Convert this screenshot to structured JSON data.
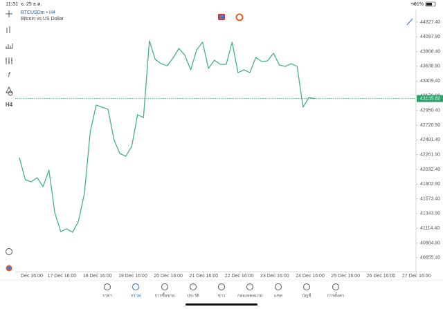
{
  "status_bar": {
    "time": "11:31",
    "date": "จ. 25 ธ.ค.",
    "battery": "61%"
  },
  "symbol": {
    "name": "BTCUSDm • H4",
    "description": "Bitcoin vs US Dollar"
  },
  "toolbar": {
    "timeframe": "H4"
  },
  "chart_data": {
    "type": "line",
    "color": "#45b08a",
    "values": [
      42215,
      41871,
      41838,
      41903,
      41763,
      42021,
      41353,
      41062,
      41105,
      41051,
      41224,
      41655,
      42625,
      43034,
      43002,
      42969,
      42495,
      42280,
      42237,
      42387,
      42883,
      42840,
      44036,
      43745,
      43680,
      43648,
      43767,
      43918,
      43810,
      43584,
      43896,
      44015,
      43605,
      43734,
      43670,
      43670,
      44015,
      43540,
      43584,
      43540,
      43777,
      43713,
      43724,
      43842,
      43659,
      43637,
      43680,
      43637,
      43002,
      43153,
      43135.82
    ],
    "ylim": [
      40437.6,
      44521.4
    ],
    "yticks": [
      {
        "value": 40655.4,
        "label": "40655.40"
      },
      {
        "value": 40884.9,
        "label": "40884.90"
      },
      {
        "value": 41114.4,
        "label": "41114.40"
      },
      {
        "value": 41343.9,
        "label": "41343.90"
      },
      {
        "value": 41573.4,
        "label": "41573.40"
      },
      {
        "value": 41802.9,
        "label": "41802.90"
      },
      {
        "value": 42032.4,
        "label": "42032.40"
      },
      {
        "value": 42261.9,
        "label": "42261.90"
      },
      {
        "value": 42491.4,
        "label": "42491.40"
      },
      {
        "value": 42720.9,
        "label": "42720.90"
      },
      {
        "value": 42950.4,
        "label": "42950.40"
      },
      {
        "value": 43179.9,
        "label": "43179.90"
      },
      {
        "value": 43409.4,
        "label": "43409.40"
      },
      {
        "value": 43638.9,
        "label": "43638.90"
      },
      {
        "value": 43868.4,
        "label": "43868.40"
      },
      {
        "value": 44097.9,
        "label": "44097.90"
      },
      {
        "value": 44327.4,
        "label": "44327.40"
      }
    ],
    "xlim": [
      0,
      67
    ],
    "xticks": [
      {
        "value": 1.2,
        "label": "Dec 16:00"
      },
      {
        "value": 7.2,
        "label": "17 Dec 16:00"
      },
      {
        "value": 13.2,
        "label": "18 Dec 16:00"
      },
      {
        "value": 19.2,
        "label": "19 Dec 16:00"
      },
      {
        "value": 25.2,
        "label": "20 Dec 16:00"
      },
      {
        "value": 31.2,
        "label": "21 Dec 16:00"
      },
      {
        "value": 37.2,
        "label": "22 Dec 16:00"
      },
      {
        "value": 43.2,
        "label": "23 Dec 16:00"
      },
      {
        "value": 49.2,
        "label": "24 Dec 16:00"
      },
      {
        "value": 55.2,
        "label": "25 Dec 16:00"
      },
      {
        "value": 61.2,
        "label": "26 Dec 16:00"
      },
      {
        "value": 67.2,
        "label": "27 Dec 16:00"
      }
    ],
    "current_price": 43135.82,
    "current_price_color": "#2e9e6b"
  },
  "tabs": [
    "ราคา",
    "กราฟ",
    "การซื้อขาย",
    "ประวัติ",
    "ข่าว",
    "กล่องจดหมาย",
    "แชท",
    "บัญชี",
    "การตั้งค่า"
  ]
}
